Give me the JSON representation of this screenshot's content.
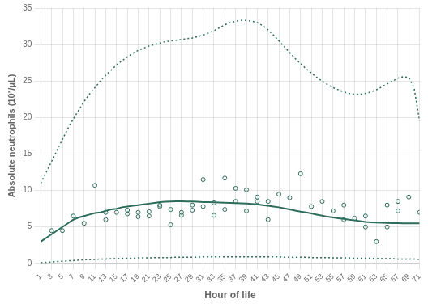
{
  "chart_data": {
    "type": "line",
    "xlabel": "Hour of life",
    "ylabel": "Absolute neutrophils (10³/μL)",
    "xlim": [
      1,
      71
    ],
    "ylim": [
      0,
      35
    ],
    "xticks": [
      1,
      3,
      5,
      7,
      9,
      11,
      13,
      15,
      17,
      19,
      21,
      23,
      25,
      27,
      29,
      31,
      33,
      35,
      37,
      39,
      41,
      43,
      45,
      47,
      49,
      51,
      53,
      55,
      57,
      59,
      61,
      63,
      65,
      67,
      69,
      71
    ],
    "yticks": [
      0,
      5,
      10,
      15,
      20,
      25,
      30,
      35
    ],
    "grid": true,
    "series": [
      {
        "type": "line",
        "line_style": "dotted",
        "color": "#2d6b5a",
        "x": [
          1,
          2,
          3,
          4,
          5,
          6,
          7,
          8,
          9,
          10,
          11,
          12,
          13,
          14,
          15,
          16,
          17,
          18,
          19,
          20,
          21,
          22,
          23,
          24,
          25,
          26,
          27,
          28,
          29,
          30,
          31,
          32,
          33,
          34,
          35,
          36,
          37,
          38,
          39,
          40,
          41,
          42,
          43,
          44,
          45,
          46,
          47,
          48,
          49,
          50,
          51,
          52,
          53,
          54,
          55,
          56,
          57,
          58,
          59,
          60,
          61,
          62,
          63,
          64,
          65,
          66,
          67,
          68,
          69,
          70,
          71
        ],
        "values": [
          0.1,
          0.15,
          0.2,
          0.25,
          0.3,
          0.35,
          0.4,
          0.45,
          0.5,
          0.5,
          0.55,
          0.6,
          0.6,
          0.65,
          0.65,
          0.7,
          0.7,
          0.7,
          0.75,
          0.75,
          0.75,
          0.8,
          0.8,
          0.8,
          0.8,
          0.85,
          0.85,
          0.85,
          0.85,
          0.85,
          0.9,
          0.9,
          0.9,
          0.9,
          0.9,
          0.9,
          0.9,
          0.9,
          0.9,
          0.9,
          0.9,
          0.9,
          0.9,
          0.9,
          0.9,
          0.85,
          0.85,
          0.85,
          0.85,
          0.85,
          0.8,
          0.8,
          0.8,
          0.8,
          0.75,
          0.75,
          0.75,
          0.75,
          0.7,
          0.7,
          0.7,
          0.7,
          0.65,
          0.65,
          0.65,
          0.65,
          0.6,
          0.6,
          0.6,
          0.6,
          0.55
        ]
      },
      {
        "type": "line",
        "line_style": "dotted",
        "color": "#2d6b5a",
        "x": [
          1,
          2,
          3,
          4,
          5,
          6,
          7,
          8,
          9,
          10,
          11,
          12,
          13,
          14,
          15,
          16,
          17,
          18,
          19,
          20,
          21,
          22,
          23,
          24,
          25,
          26,
          27,
          28,
          29,
          30,
          31,
          32,
          33,
          34,
          35,
          36,
          37,
          38,
          39,
          40,
          41,
          42,
          43,
          44,
          45,
          46,
          47,
          48,
          49,
          50,
          51,
          52,
          53,
          54,
          55,
          56,
          57,
          58,
          59,
          60,
          61,
          62,
          63,
          64,
          65,
          66,
          67,
          68,
          69,
          70,
          71
        ],
        "values": [
          11.0,
          12.5,
          14.0,
          15.5,
          17.0,
          18.5,
          19.8,
          21.0,
          22.2,
          23.2,
          24.1,
          25.0,
          25.8,
          26.5,
          27.2,
          27.8,
          28.3,
          28.8,
          29.2,
          29.5,
          29.8,
          30.0,
          30.2,
          30.4,
          30.5,
          30.6,
          30.7,
          30.8,
          30.9,
          31.1,
          31.3,
          31.6,
          31.9,
          32.3,
          32.7,
          33.0,
          33.2,
          33.3,
          33.3,
          33.2,
          33.0,
          32.6,
          32.0,
          31.3,
          30.5,
          29.7,
          28.9,
          28.1,
          27.4,
          26.7,
          26.1,
          25.5,
          25.0,
          24.5,
          24.1,
          23.8,
          23.5,
          23.3,
          23.2,
          23.2,
          23.3,
          23.5,
          23.8,
          24.2,
          24.6,
          25.0,
          25.4,
          25.6,
          25.5,
          24.0,
          19.5
        ]
      },
      {
        "type": "line",
        "line_style": "solid",
        "color": "#2d6b5a",
        "x": [
          1,
          2,
          3,
          4,
          5,
          6,
          7,
          8,
          9,
          10,
          11,
          12,
          13,
          14,
          15,
          16,
          17,
          18,
          19,
          20,
          21,
          22,
          23,
          24,
          25,
          26,
          27,
          28,
          29,
          30,
          31,
          32,
          33,
          34,
          35,
          36,
          37,
          38,
          39,
          40,
          41,
          42,
          43,
          44,
          45,
          46,
          47,
          48,
          49,
          50,
          51,
          52,
          53,
          54,
          55,
          56,
          57,
          58,
          59,
          60,
          61,
          62,
          63,
          64,
          65,
          66,
          67,
          68,
          69,
          70,
          71
        ],
        "values": [
          3.0,
          3.5,
          4.0,
          4.5,
          5.0,
          5.5,
          6.0,
          6.3,
          6.5,
          6.7,
          6.9,
          7.0,
          7.2,
          7.4,
          7.5,
          7.7,
          7.8,
          7.9,
          8.0,
          8.1,
          8.2,
          8.3,
          8.4,
          8.45,
          8.5,
          8.52,
          8.52,
          8.5,
          8.48,
          8.45,
          8.42,
          8.4,
          8.38,
          8.35,
          8.32,
          8.3,
          8.28,
          8.25,
          8.2,
          8.15,
          8.1,
          8.0,
          7.9,
          7.8,
          7.7,
          7.55,
          7.4,
          7.25,
          7.1,
          7.0,
          6.85,
          6.7,
          6.55,
          6.4,
          6.3,
          6.2,
          6.1,
          6.0,
          5.9,
          5.8,
          5.7,
          5.65,
          5.6,
          5.57,
          5.55,
          5.53,
          5.52,
          5.51,
          5.5,
          5.5,
          5.5
        ]
      },
      {
        "type": "scatter",
        "marker": "circle",
        "color": "#2d6b5a",
        "x": [
          3,
          5,
          7,
          9,
          11,
          13,
          13,
          15,
          17,
          17,
          19,
          19,
          21,
          21,
          23,
          23,
          25,
          25,
          27,
          27,
          29,
          29,
          31,
          31,
          33,
          33,
          35,
          35,
          37,
          37,
          39,
          39,
          41,
          41,
          43,
          43,
          45,
          47,
          49,
          51,
          53,
          55,
          57,
          57,
          59,
          61,
          61,
          63,
          65,
          65,
          67,
          67,
          69,
          71
        ],
        "values": [
          4.5,
          4.5,
          6.5,
          5.5,
          10.7,
          6.0,
          7.0,
          7.0,
          7.3,
          6.8,
          7.0,
          6.4,
          7.1,
          6.5,
          8.0,
          7.8,
          7.4,
          5.3,
          7.0,
          6.6,
          8.0,
          7.3,
          11.5,
          7.8,
          8.3,
          6.6,
          11.7,
          7.4,
          10.3,
          8.5,
          10.1,
          7.2,
          9.1,
          8.5,
          8.5,
          6.0,
          9.5,
          9.0,
          12.3,
          7.8,
          8.5,
          7.2,
          8.0,
          6.0,
          6.2,
          6.5,
          5.0,
          3.0,
          8.0,
          5.0,
          8.5,
          7.2,
          9.1,
          7.0
        ]
      }
    ]
  }
}
